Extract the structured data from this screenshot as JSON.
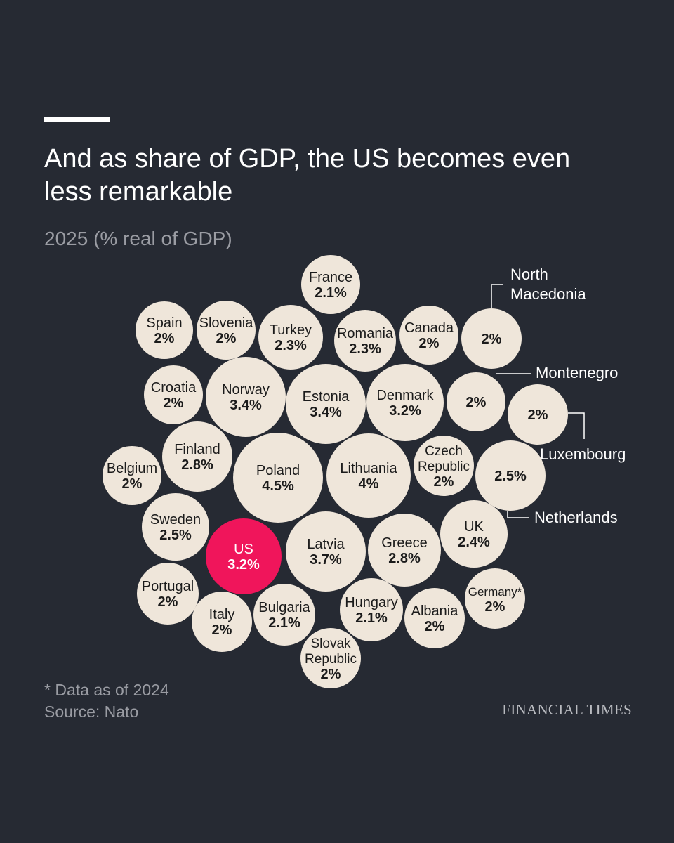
{
  "header": {
    "title": "And as share of GDP, the US becomes even less remarkable",
    "subtitle": "2025 (% real of GDP)"
  },
  "footer": {
    "footnote": "* Data as of 2024",
    "source": "Source: Nato",
    "brand": "FINANCIAL TIMES"
  },
  "colors": {
    "background": "#262a33",
    "bubble": "#efe6da",
    "highlight": "#f0155b",
    "bubble_text": "#1b1b1b",
    "highlight_text": "#ffffff"
  },
  "chart_data": {
    "type": "bubble",
    "title": "And as share of GDP, the US becomes even less remarkable",
    "subtitle": "2025 (% real of GDP)",
    "unit": "%",
    "highlight": "US",
    "points": [
      {
        "name": "France",
        "value": 2.1,
        "label": "2.1%"
      },
      {
        "name": "Spain",
        "value": 2.0,
        "label": "2%"
      },
      {
        "name": "Slovenia",
        "value": 2.0,
        "label": "2%"
      },
      {
        "name": "Turkey",
        "value": 2.3,
        "label": "2.3%"
      },
      {
        "name": "Romania",
        "value": 2.3,
        "label": "2.3%"
      },
      {
        "name": "Canada",
        "value": 2.0,
        "label": "2%"
      },
      {
        "name": "North Macedonia",
        "value": 2.0,
        "label": "2%"
      },
      {
        "name": "Croatia",
        "value": 2.0,
        "label": "2%"
      },
      {
        "name": "Norway",
        "value": 3.4,
        "label": "3.4%"
      },
      {
        "name": "Estonia",
        "value": 3.4,
        "label": "3.4%"
      },
      {
        "name": "Denmark",
        "value": 3.2,
        "label": "3.2%"
      },
      {
        "name": "Montenegro",
        "value": 2.0,
        "label": "2%"
      },
      {
        "name": "Luxembourg",
        "value": 2.0,
        "label": "2%"
      },
      {
        "name": "Finland",
        "value": 2.8,
        "label": "2.8%"
      },
      {
        "name": "Belgium",
        "value": 2.0,
        "label": "2%"
      },
      {
        "name": "Poland",
        "value": 4.5,
        "label": "4.5%"
      },
      {
        "name": "Lithuania",
        "value": 4.0,
        "label": "4%"
      },
      {
        "name": "Czech Republic",
        "value": 2.0,
        "label": "2%"
      },
      {
        "name": "Netherlands",
        "value": 2.5,
        "label": "2.5%"
      },
      {
        "name": "Sweden",
        "value": 2.5,
        "label": "2.5%"
      },
      {
        "name": "US",
        "value": 3.2,
        "label": "3.2%"
      },
      {
        "name": "Latvia",
        "value": 3.7,
        "label": "3.7%"
      },
      {
        "name": "Greece",
        "value": 2.8,
        "label": "2.8%"
      },
      {
        "name": "UK",
        "value": 2.4,
        "label": "2.4%"
      },
      {
        "name": "Portugal",
        "value": 2.0,
        "label": "2%"
      },
      {
        "name": "Italy",
        "value": 2.0,
        "label": "2%"
      },
      {
        "name": "Bulgaria",
        "value": 2.1,
        "label": "2.1%"
      },
      {
        "name": "Hungary",
        "value": 2.1,
        "label": "2.1%"
      },
      {
        "name": "Albania",
        "value": 2.0,
        "label": "2%"
      },
      {
        "name": "Germany*",
        "value": 2.0,
        "label": "2%"
      },
      {
        "name": "Slovak Republic",
        "value": 2.0,
        "label": "2%"
      }
    ]
  }
}
